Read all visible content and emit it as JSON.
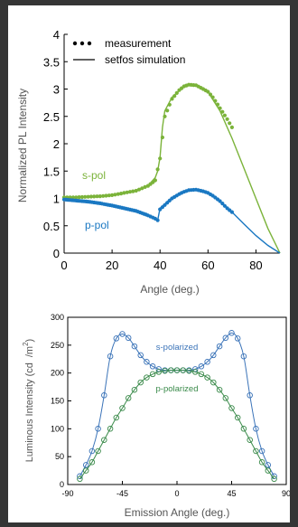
{
  "chart_data": [
    {
      "type": "scatter",
      "title": "",
      "xlabel": "Angle (deg.)",
      "ylabel": "Normalized PL Intensity",
      "xlim": [
        0,
        90
      ],
      "ylim": [
        0,
        4
      ],
      "xticks": [
        "0",
        "20",
        "40",
        "60",
        "80"
      ],
      "yticks": [
        "0",
        "0.5",
        "1",
        "1.5",
        "2",
        "2.5",
        "3",
        "3.5",
        "4"
      ],
      "legend": {
        "placement": "top-left",
        "entries": [
          {
            "marker": "dots",
            "label": "measurement"
          },
          {
            "marker": "line",
            "label": "setfos simulation"
          }
        ]
      },
      "series": [
        {
          "name": "s-pol",
          "color": "#7bb33a",
          "simulation": {
            "x": [
              0,
              10,
              20,
              30,
              35,
              38,
              39,
              40,
              41,
              42,
              45,
              50,
              55,
              60,
              65,
              70,
              75,
              80,
              85,
              90
            ],
            "y": [
              1.02,
              1.03,
              1.06,
              1.14,
              1.23,
              1.38,
              1.5,
              1.75,
              2.3,
              2.6,
              2.85,
              3.05,
              3.08,
              2.95,
              2.6,
              2.1,
              1.55,
              1.0,
              0.45,
              0.0
            ]
          },
          "measurement": {
            "x": [
              0,
              5,
              10,
              15,
              20,
              25,
              30,
              35,
              38,
              40,
              42,
              45,
              48,
              50,
              52,
              55,
              58,
              60,
              62,
              65,
              68,
              70
            ],
            "y": [
              1.02,
              1.02,
              1.03,
              1.04,
              1.06,
              1.1,
              1.14,
              1.23,
              1.33,
              1.73,
              2.5,
              2.82,
              2.98,
              3.05,
              3.08,
              3.07,
              3.0,
              2.95,
              2.85,
              2.65,
              2.45,
              2.3
            ]
          }
        },
        {
          "name": "p-pol",
          "color": "#1a78c2",
          "simulation": {
            "x": [
              0,
              10,
              20,
              30,
              35,
              38,
              39,
              40,
              42,
              45,
              50,
              55,
              60,
              65,
              70,
              75,
              80,
              85,
              90
            ],
            "y": [
              0.98,
              0.94,
              0.87,
              0.77,
              0.69,
              0.63,
              0.6,
              0.82,
              0.9,
              1.02,
              1.12,
              1.16,
              1.1,
              0.95,
              0.75,
              0.53,
              0.32,
              0.14,
              0.0
            ]
          },
          "measurement": {
            "x": [
              0,
              5,
              10,
              15,
              20,
              25,
              30,
              35,
              38,
              39,
              40,
              42,
              45,
              48,
              50,
              52,
              55,
              58,
              60,
              62,
              65,
              68,
              70
            ],
            "y": [
              0.98,
              0.96,
              0.94,
              0.91,
              0.87,
              0.82,
              0.77,
              0.69,
              0.63,
              0.6,
              0.8,
              0.88,
              1.0,
              1.08,
              1.12,
              1.15,
              1.16,
              1.13,
              1.1,
              1.05,
              0.95,
              0.82,
              0.75
            ]
          }
        }
      ]
    },
    {
      "type": "scatter",
      "title": "",
      "xlabel": "Emission Angle (deg.)",
      "ylabel_pre": "Luminous Intensity (cd",
      "ylabel_post": "/m",
      "ylabel_sup": "2",
      "ylabel_close": ")",
      "xlim": [
        -90,
        90
      ],
      "ylim": [
        0,
        300
      ],
      "xticks": [
        "-90",
        "-45",
        "0",
        "45",
        "90"
      ],
      "yticks": [
        "0",
        "50",
        "100",
        "150",
        "200",
        "250",
        "300"
      ],
      "series": [
        {
          "name": "s-polarized",
          "color": "#3a73b8",
          "x": [
            -80,
            -75,
            -70,
            -65,
            -60,
            -55,
            -50,
            -45,
            -40,
            -35,
            -30,
            -25,
            -20,
            -15,
            -10,
            -5,
            0,
            5,
            10,
            15,
            20,
            25,
            30,
            35,
            40,
            45,
            50,
            55,
            60,
            65,
            70,
            75,
            80
          ],
          "y": [
            15,
            35,
            60,
            100,
            160,
            230,
            262,
            270,
            263,
            248,
            232,
            220,
            212,
            207,
            205,
            205,
            205,
            205,
            205,
            207,
            212,
            220,
            232,
            248,
            263,
            272,
            262,
            230,
            160,
            100,
            60,
            35,
            15
          ]
        },
        {
          "name": "p-polarized",
          "color": "#3a8a4a",
          "x": [
            -80,
            -75,
            -70,
            -65,
            -60,
            -55,
            -50,
            -45,
            -40,
            -35,
            -30,
            -25,
            -20,
            -15,
            -10,
            -5,
            0,
            5,
            10,
            15,
            20,
            25,
            30,
            35,
            40,
            45,
            50,
            55,
            60,
            65,
            70,
            75,
            80
          ],
          "y": [
            10,
            25,
            40,
            60,
            80,
            100,
            120,
            137,
            155,
            170,
            183,
            192,
            198,
            202,
            204,
            205,
            205,
            205,
            204,
            202,
            198,
            192,
            183,
            170,
            155,
            137,
            120,
            100,
            80,
            60,
            40,
            25,
            10
          ]
        }
      ]
    }
  ]
}
